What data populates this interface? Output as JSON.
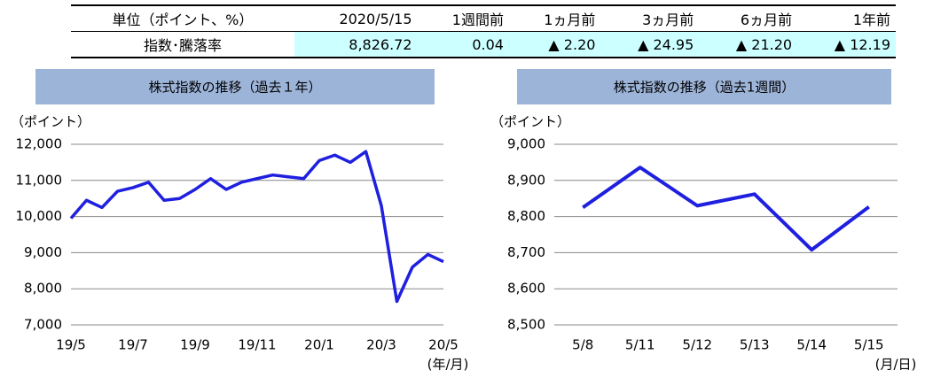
{
  "table": {
    "header": [
      "単位（ポイント、%）",
      "2020/5/15",
      "1週間前",
      "1ヵ月前",
      "3ヵ月前",
      "6ヵ月前",
      "1年前"
    ],
    "rows": [
      [
        "指数･騰落率",
        "8,826.72",
        "0.04",
        "▲ 2.20",
        "▲ 24.95",
        "▲ 21.20",
        "▲ 12.19"
      ]
    ]
  },
  "chart_data": [
    {
      "type": "line",
      "title": "株式指数の推移（過去１年）",
      "ylabel": "（ポイント）",
      "xlabel": "(年/月)",
      "categories": [
        "19/5",
        null,
        null,
        null,
        "19/7",
        null,
        null,
        null,
        "19/9",
        null,
        null,
        null,
        "19/11",
        null,
        null,
        null,
        "20/1",
        null,
        null,
        null,
        "20/3",
        null,
        null,
        null,
        "20/5"
      ],
      "values": [
        9950,
        10450,
        10250,
        10700,
        10800,
        10950,
        10450,
        10500,
        10750,
        11050,
        10750,
        10950,
        11050,
        11150,
        11100,
        11050,
        11550,
        11700,
        11500,
        11800,
        10300,
        7650,
        8600,
        8950,
        8750
      ],
      "color": "#1f1fe0",
      "ylim": [
        7000,
        12000
      ],
      "yticks": [
        {
          "value": 7000,
          "label": "7,000"
        },
        {
          "value": 8000,
          "label": "8,000"
        },
        {
          "value": 9000,
          "label": "9,000"
        },
        {
          "value": 10000,
          "label": "10,000"
        },
        {
          "value": 11000,
          "label": "11,000"
        },
        {
          "value": 12000,
          "label": "12,000"
        }
      ],
      "grid": true
    },
    {
      "type": "line",
      "title": "株式指数の推移（過去1週間）",
      "ylabel": "（ポイント）",
      "xlabel": "(月/日)",
      "categories": [
        "5/8",
        "5/11",
        "5/12",
        "5/13",
        "5/14",
        "5/15"
      ],
      "values": [
        8825,
        8936,
        8830,
        8862,
        8708,
        8826.72
      ],
      "color": "#1f1fe0",
      "ylim": [
        8500,
        9000
      ],
      "yticks": [
        {
          "value": 8500,
          "label": "8,500"
        },
        {
          "value": 8600,
          "label": "8,600"
        },
        {
          "value": 8700,
          "label": "8,700"
        },
        {
          "value": 8800,
          "label": "8,800"
        },
        {
          "value": 8900,
          "label": "8,900"
        },
        {
          "value": 9000,
          "label": "9,000"
        }
      ],
      "grid": true
    }
  ]
}
